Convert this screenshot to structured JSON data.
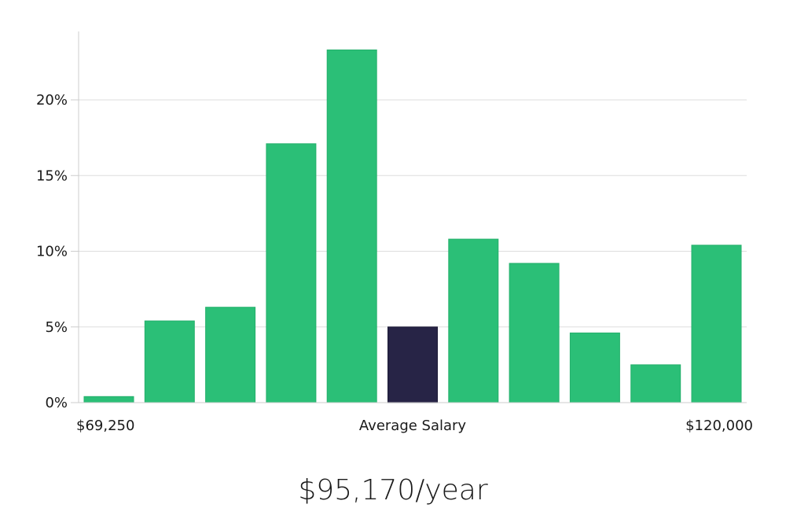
{
  "chart_data": {
    "type": "bar",
    "title": "",
    "xlabel": "Average Salary",
    "ylabel": "",
    "x_range_labels": {
      "min": "$69,250",
      "max": "$120,000"
    },
    "yticks": [
      "0%",
      "5%",
      "10%",
      "15%",
      "20%"
    ],
    "ylim": [
      0,
      24
    ],
    "grid": true,
    "values": [
      0.4,
      5.4,
      6.3,
      17.1,
      23.3,
      5.0,
      10.8,
      9.2,
      4.6,
      2.5,
      10.4
    ],
    "highlight_index": 5,
    "colors": {
      "bar": "#2bbf77",
      "highlight": "#272446",
      "grid": "#dddddd",
      "axis": "#cccccc"
    }
  },
  "summary": {
    "average_salary": "$95,170/year"
  }
}
